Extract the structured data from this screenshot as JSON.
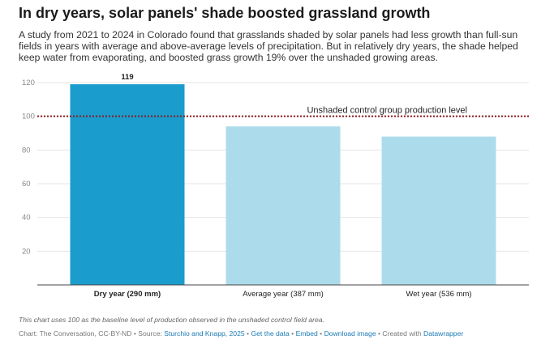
{
  "header": {
    "title": "In dry years, solar panels' shade boosted grassland growth",
    "subtitle": "A study from 2021 to 2024 in Colorado found that grasslands shaded by solar panels had less growth than full-sun fields in years with average and above-average levels of precipitation. But in relatively dry years, the shade helped keep water from evaporating, and boosted grass growth 19% over the unshaded growing areas."
  },
  "chart_data": {
    "type": "bar",
    "categories": [
      "Dry year (290 mm)",
      "Average year (387 mm)",
      "Wet year (536 mm)"
    ],
    "values": [
      119,
      94,
      88
    ],
    "data_labels": [
      "119",
      "",
      ""
    ],
    "bar_colors": [
      "#1a9ccd",
      "#acdcec",
      "#acdcec"
    ],
    "highlight_index": 0,
    "y_ticks": [
      20,
      40,
      60,
      80,
      100,
      120
    ],
    "ylim": [
      0,
      120
    ],
    "grid": true,
    "reference_line": {
      "value": 100,
      "label": "Unshaded control group production level",
      "color": "#8b1a1a"
    }
  },
  "notes": {
    "text": "This chart uses 100 as the baseline level of production observed in the unshaded control field area."
  },
  "footer": {
    "chart_credit": "Chart: The Conversation, CC-BY-ND",
    "source_label": " • Source: ",
    "source_link": "Sturchio and Knapp, 2025",
    "sep1": " • ",
    "get_data": "Get the data",
    "sep2": " • ",
    "embed": "Embed",
    "sep3": " • ",
    "download": "Download image",
    "created_label": " • Created with ",
    "datawrapper": "Datawrapper"
  }
}
